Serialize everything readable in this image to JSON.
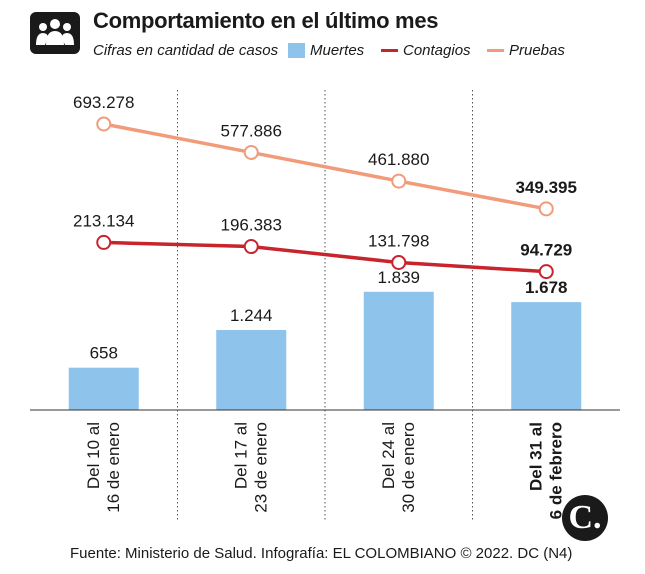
{
  "header": {
    "title": "Comportamiento en el último mes",
    "subtitle": "Cifras en cantidad de casos",
    "icon": "people-group-icon"
  },
  "legend": [
    {
      "label": "Muertes",
      "kind": "bar"
    },
    {
      "label": "Contagios",
      "kind": "line"
    },
    {
      "label": "Pruebas",
      "kind": "line"
    }
  ],
  "colors": {
    "deaths": "#8ec3ec",
    "cases": "#c8242c",
    "tests": "#f19b7b",
    "text": "#1a1a1a",
    "divider": "#555555"
  },
  "chart_data": {
    "type": "bar",
    "title": "Comportamiento en el último mes",
    "subtitle": "Cifras en cantidad de casos",
    "categories": [
      [
        "Del 10 al",
        "16 de enero"
      ],
      [
        "Del 17 al",
        "23 de enero"
      ],
      [
        "Del 24 al",
        "30 de enero"
      ],
      [
        "Del 31 al",
        "6 de febrero"
      ]
    ],
    "series": [
      {
        "name": "Muertes",
        "type": "bar",
        "values": [
          658,
          1244,
          1839,
          1678
        ],
        "labels": [
          "658",
          "1.244",
          "1.839",
          "1.678"
        ]
      },
      {
        "name": "Contagios",
        "type": "line",
        "values": [
          213134,
          196383,
          131798,
          94729
        ],
        "labels": [
          "213.134",
          "196.383",
          "131.798",
          "94.729"
        ]
      },
      {
        "name": "Pruebas",
        "type": "line",
        "values": [
          693278,
          577886,
          461880,
          349395
        ],
        "labels": [
          "693.278",
          "577.886",
          "461.880",
          "349.395"
        ]
      }
    ],
    "highlight_last": true,
    "grid": false,
    "legend_position": "top"
  },
  "footer": {
    "source": "Fuente: Ministerio de Salud. Infografía: EL COLOMBIANO © 2022. DC (N4)",
    "logo_letter": "C."
  }
}
